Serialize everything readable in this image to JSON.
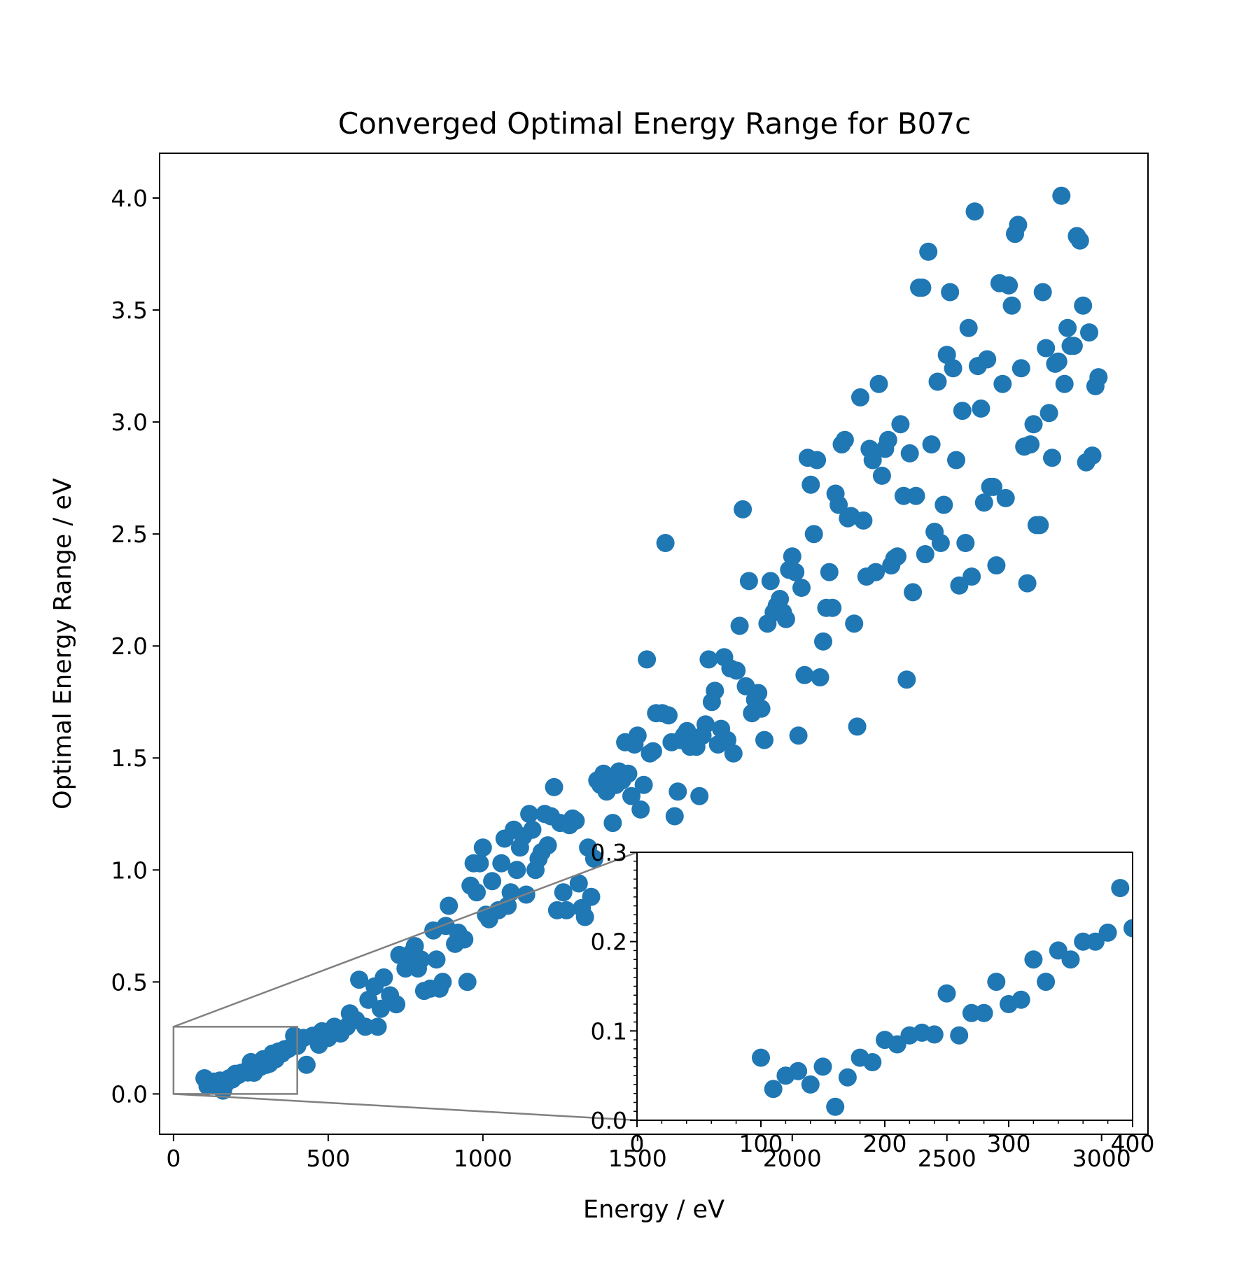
{
  "chart_data": {
    "type": "scatter",
    "title": "Converged Optimal Energy Range for B07c",
    "xlabel": "Energy / eV",
    "ylabel": "Optimal Energy Range / eV",
    "xlim": [
      -45,
      3150
    ],
    "ylim": [
      -0.18,
      4.2
    ],
    "xticks": [
      0,
      500,
      1000,
      1500,
      2000,
      2500,
      3000
    ],
    "yticks": [
      0.0,
      0.5,
      1.0,
      1.5,
      2.0,
      2.5,
      3.0,
      3.5,
      4.0
    ],
    "xtick_labels": [
      "0",
      "500",
      "1000",
      "1500",
      "2000",
      "2500",
      "3000"
    ],
    "ytick_labels": [
      "0.0",
      "0.5",
      "1.0",
      "1.5",
      "2.0",
      "2.5",
      "3.0",
      "3.5",
      "4.0"
    ],
    "marker_color": "#1f77b4",
    "grid": false,
    "series": [
      {
        "points": [
          [
            100,
            0.07
          ],
          [
            110,
            0.035
          ],
          [
            120,
            0.05
          ],
          [
            130,
            0.055
          ],
          [
            140,
            0.04
          ],
          [
            150,
            0.06
          ],
          [
            160,
            0.015
          ],
          [
            170,
            0.048
          ],
          [
            180,
            0.07
          ],
          [
            190,
            0.065
          ],
          [
            200,
            0.09
          ],
          [
            210,
            0.085
          ],
          [
            220,
            0.095
          ],
          [
            230,
            0.098
          ],
          [
            240,
            0.096
          ],
          [
            250,
            0.142
          ],
          [
            260,
            0.095
          ],
          [
            270,
            0.12
          ],
          [
            280,
            0.12
          ],
          [
            290,
            0.155
          ],
          [
            300,
            0.13
          ],
          [
            310,
            0.135
          ],
          [
            320,
            0.18
          ],
          [
            330,
            0.155
          ],
          [
            340,
            0.19
          ],
          [
            350,
            0.18
          ],
          [
            360,
            0.2
          ],
          [
            370,
            0.2
          ],
          [
            380,
            0.21
          ],
          [
            390,
            0.26
          ],
          [
            400,
            0.215
          ],
          [
            420,
            0.25
          ],
          [
            430,
            0.13
          ],
          [
            450,
            0.26
          ],
          [
            470,
            0.22
          ],
          [
            480,
            0.28
          ],
          [
            500,
            0.25
          ],
          [
            520,
            0.3
          ],
          [
            540,
            0.27
          ],
          [
            560,
            0.3
          ],
          [
            570,
            0.36
          ],
          [
            590,
            0.33
          ],
          [
            600,
            0.51
          ],
          [
            620,
            0.3
          ],
          [
            630,
            0.42
          ],
          [
            650,
            0.48
          ],
          [
            660,
            0.3
          ],
          [
            670,
            0.38
          ],
          [
            680,
            0.52
          ],
          [
            700,
            0.44
          ],
          [
            720,
            0.4
          ],
          [
            730,
            0.62
          ],
          [
            750,
            0.56
          ],
          [
            770,
            0.63
          ],
          [
            780,
            0.66
          ],
          [
            790,
            0.56
          ],
          [
            800,
            0.6
          ],
          [
            810,
            0.46
          ],
          [
            830,
            0.47
          ],
          [
            840,
            0.73
          ],
          [
            850,
            0.6
          ],
          [
            860,
            0.47
          ],
          [
            870,
            0.5
          ],
          [
            880,
            0.75
          ],
          [
            890,
            0.84
          ],
          [
            910,
            0.67
          ],
          [
            920,
            0.72
          ],
          [
            940,
            0.69
          ],
          [
            950,
            0.5
          ],
          [
            960,
            0.93
          ],
          [
            970,
            1.03
          ],
          [
            980,
            0.9
          ],
          [
            990,
            1.03
          ],
          [
            1000,
            1.1
          ],
          [
            1010,
            0.8
          ],
          [
            1020,
            0.78
          ],
          [
            1030,
            0.95
          ],
          [
            1050,
            0.82
          ],
          [
            1060,
            1.03
          ],
          [
            1070,
            1.14
          ],
          [
            1080,
            0.84
          ],
          [
            1090,
            0.9
          ],
          [
            1100,
            1.18
          ],
          [
            1110,
            1.0
          ],
          [
            1120,
            1.1
          ],
          [
            1130,
            1.15
          ],
          [
            1140,
            0.89
          ],
          [
            1150,
            1.25
          ],
          [
            1160,
            1.18
          ],
          [
            1170,
            1.0
          ],
          [
            1180,
            1.05
          ],
          [
            1190,
            1.08
          ],
          [
            1200,
            1.25
          ],
          [
            1210,
            1.11
          ],
          [
            1220,
            1.24
          ],
          [
            1230,
            1.37
          ],
          [
            1240,
            0.82
          ],
          [
            1250,
            1.21
          ],
          [
            1260,
            0.9
          ],
          [
            1270,
            0.82
          ],
          [
            1280,
            1.2
          ],
          [
            1290,
            1.23
          ],
          [
            1300,
            1.22
          ],
          [
            1310,
            0.94
          ],
          [
            1320,
            0.83
          ],
          [
            1330,
            0.79
          ],
          [
            1340,
            1.1
          ],
          [
            1350,
            0.88
          ],
          [
            1360,
            1.05
          ],
          [
            1370,
            1.4
          ],
          [
            1380,
            1.38
          ],
          [
            1390,
            1.43
          ],
          [
            1400,
            1.35
          ],
          [
            1410,
            1.38
          ],
          [
            1420,
            1.21
          ],
          [
            1430,
            1.38
          ],
          [
            1440,
            1.44
          ],
          [
            1450,
            1.4
          ],
          [
            1460,
            1.57
          ],
          [
            1470,
            1.43
          ],
          [
            1480,
            1.33
          ],
          [
            1490,
            1.56
          ],
          [
            1500,
            1.6
          ],
          [
            1510,
            1.27
          ],
          [
            1520,
            1.38
          ],
          [
            1530,
            1.94
          ],
          [
            1540,
            1.52
          ],
          [
            1550,
            1.53
          ],
          [
            1560,
            1.7
          ],
          [
            1580,
            1.7
          ],
          [
            1590,
            2.46
          ],
          [
            1600,
            1.69
          ],
          [
            1610,
            1.57
          ],
          [
            1620,
            1.24
          ],
          [
            1630,
            1.35
          ],
          [
            1640,
            1.58
          ],
          [
            1650,
            1.6
          ],
          [
            1660,
            1.62
          ],
          [
            1670,
            1.55
          ],
          [
            1680,
            1.59
          ],
          [
            1690,
            1.55
          ],
          [
            1700,
            1.33
          ],
          [
            1710,
            1.6
          ],
          [
            1720,
            1.65
          ],
          [
            1730,
            1.94
          ],
          [
            1740,
            1.75
          ],
          [
            1750,
            1.8
          ],
          [
            1760,
            1.56
          ],
          [
            1770,
            1.63
          ],
          [
            1780,
            1.95
          ],
          [
            1790,
            1.58
          ],
          [
            1800,
            1.9
          ],
          [
            1810,
            1.52
          ],
          [
            1820,
            1.89
          ],
          [
            1830,
            2.09
          ],
          [
            1840,
            2.61
          ],
          [
            1850,
            1.82
          ],
          [
            1860,
            2.29
          ],
          [
            1870,
            1.7
          ],
          [
            1880,
            1.76
          ],
          [
            1890,
            1.79
          ],
          [
            1900,
            1.72
          ],
          [
            1910,
            1.58
          ],
          [
            1920,
            2.1
          ],
          [
            1930,
            2.29
          ],
          [
            1940,
            2.15
          ],
          [
            1950,
            2.18
          ],
          [
            1960,
            2.21
          ],
          [
            1970,
            2.15
          ],
          [
            1980,
            2.12
          ],
          [
            1990,
            2.34
          ],
          [
            2000,
            2.4
          ],
          [
            2010,
            2.33
          ],
          [
            2020,
            1.6
          ],
          [
            2030,
            2.26
          ],
          [
            2040,
            1.87
          ],
          [
            2050,
            2.84
          ],
          [
            2060,
            2.72
          ],
          [
            2070,
            2.5
          ],
          [
            2080,
            2.83
          ],
          [
            2090,
            1.86
          ],
          [
            2100,
            2.02
          ],
          [
            2110,
            2.17
          ],
          [
            2120,
            2.33
          ],
          [
            2130,
            2.17
          ],
          [
            2140,
            2.68
          ],
          [
            2150,
            2.63
          ],
          [
            2160,
            2.9
          ],
          [
            2170,
            2.92
          ],
          [
            2180,
            2.57
          ],
          [
            2190,
            2.58
          ],
          [
            2200,
            2.1
          ],
          [
            2210,
            1.64
          ],
          [
            2220,
            3.11
          ],
          [
            2230,
            2.56
          ],
          [
            2240,
            2.31
          ],
          [
            2250,
            2.88
          ],
          [
            2260,
            2.83
          ],
          [
            2270,
            2.33
          ],
          [
            2280,
            3.17
          ],
          [
            2290,
            2.76
          ],
          [
            2300,
            2.88
          ],
          [
            2310,
            2.92
          ],
          [
            2320,
            2.36
          ],
          [
            2330,
            2.39
          ],
          [
            2340,
            2.4
          ],
          [
            2350,
            2.99
          ],
          [
            2360,
            2.67
          ],
          [
            2370,
            1.85
          ],
          [
            2380,
            2.86
          ],
          [
            2390,
            2.24
          ],
          [
            2400,
            2.67
          ],
          [
            2410,
            3.6
          ],
          [
            2420,
            3.6
          ],
          [
            2430,
            2.41
          ],
          [
            2440,
            3.76
          ],
          [
            2450,
            2.9
          ],
          [
            2460,
            2.51
          ],
          [
            2470,
            3.18
          ],
          [
            2480,
            2.46
          ],
          [
            2490,
            2.63
          ],
          [
            2500,
            3.3
          ],
          [
            2510,
            3.58
          ],
          [
            2520,
            3.24
          ],
          [
            2530,
            2.83
          ],
          [
            2540,
            2.27
          ],
          [
            2550,
            3.05
          ],
          [
            2560,
            2.46
          ],
          [
            2570,
            3.42
          ],
          [
            2580,
            2.31
          ],
          [
            2590,
            3.94
          ],
          [
            2600,
            3.25
          ],
          [
            2610,
            3.06
          ],
          [
            2620,
            2.64
          ],
          [
            2630,
            3.28
          ],
          [
            2640,
            2.71
          ],
          [
            2650,
            2.71
          ],
          [
            2660,
            2.36
          ],
          [
            2670,
            3.62
          ],
          [
            2680,
            3.17
          ],
          [
            2690,
            2.66
          ],
          [
            2700,
            3.61
          ],
          [
            2710,
            3.52
          ],
          [
            2720,
            3.84
          ],
          [
            2730,
            3.88
          ],
          [
            2740,
            3.24
          ],
          [
            2750,
            2.89
          ],
          [
            2760,
            2.28
          ],
          [
            2770,
            2.9
          ],
          [
            2780,
            2.99
          ],
          [
            2790,
            2.54
          ],
          [
            2800,
            2.54
          ],
          [
            2810,
            3.58
          ],
          [
            2820,
            3.33
          ],
          [
            2830,
            3.04
          ],
          [
            2840,
            2.84
          ],
          [
            2850,
            3.26
          ],
          [
            2860,
            3.27
          ],
          [
            2870,
            4.01
          ],
          [
            2880,
            3.17
          ],
          [
            2890,
            3.42
          ],
          [
            2900,
            3.34
          ],
          [
            2910,
            3.34
          ],
          [
            2920,
            3.83
          ],
          [
            2930,
            3.81
          ],
          [
            2940,
            3.52
          ],
          [
            2950,
            2.82
          ],
          [
            2960,
            3.4
          ],
          [
            2970,
            2.85
          ],
          [
            2980,
            3.16
          ],
          [
            2990,
            3.2
          ]
        ]
      }
    ],
    "zoom_box": {
      "xlim": [
        0,
        400
      ],
      "ylim": [
        0.0,
        0.3
      ]
    },
    "inset": {
      "xlim": [
        0,
        400
      ],
      "ylim": [
        0.0,
        0.3
      ],
      "xticks": [
        0,
        100,
        200,
        300,
        400
      ],
      "yticks": [
        0.0,
        0.1,
        0.2,
        0.3
      ],
      "xtick_labels": [
        "0",
        "100",
        "200",
        "300",
        "400"
      ],
      "ytick_labels": [
        "0.0",
        "0.1",
        "0.2",
        "0.3"
      ]
    }
  }
}
